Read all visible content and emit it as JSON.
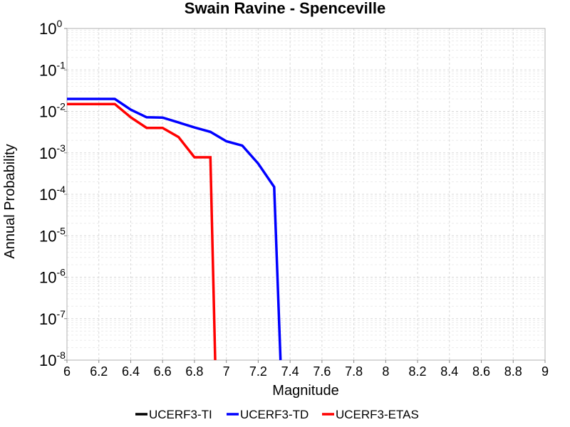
{
  "chart_data": {
    "type": "line",
    "title": "Swain Ravine - Spenceville",
    "xlabel": "Magnitude",
    "ylabel": "Annual Probability",
    "xlim": [
      6,
      9
    ],
    "ylim": [
      1e-08,
      1
    ],
    "yscale": "log",
    "grid": true,
    "legend_position": "bottom",
    "x_ticks": [
      "6",
      "6.2",
      "6.4",
      "6.6",
      "6.8",
      "7",
      "7.2",
      "7.4",
      "7.6",
      "7.8",
      "8",
      "8.2",
      "8.4",
      "8.6",
      "8.8",
      "9"
    ],
    "y_ticks": [
      {
        "base": "10",
        "exp": "0"
      },
      {
        "base": "10",
        "exp": "-1"
      },
      {
        "base": "10",
        "exp": "-2"
      },
      {
        "base": "10",
        "exp": "-3"
      },
      {
        "base": "10",
        "exp": "-4"
      },
      {
        "base": "10",
        "exp": "-5"
      },
      {
        "base": "10",
        "exp": "-6"
      },
      {
        "base": "10",
        "exp": "-7"
      },
      {
        "base": "10",
        "exp": "-8"
      }
    ],
    "series": [
      {
        "name": "UCERF3-TI",
        "color": "#000000",
        "x": [],
        "y": []
      },
      {
        "name": "UCERF3-TD",
        "color": "#0000ff",
        "x": [
          6.0,
          6.1,
          6.2,
          6.3,
          6.4,
          6.5,
          6.6,
          6.7,
          6.8,
          6.9,
          7.0,
          7.1,
          7.2,
          7.3,
          7.34
        ],
        "y": [
          0.02,
          0.02,
          0.02,
          0.02,
          0.011,
          0.0072,
          0.0071,
          0.0054,
          0.0041,
          0.0032,
          0.0019,
          0.0015,
          0.00055,
          0.00015,
          1e-08
        ]
      },
      {
        "name": "UCERF3-ETAS",
        "color": "#ff0000",
        "x": [
          6.0,
          6.1,
          6.2,
          6.3,
          6.4,
          6.5,
          6.6,
          6.7,
          6.8,
          6.9,
          6.93
        ],
        "y": [
          0.015,
          0.015,
          0.015,
          0.015,
          0.0072,
          0.004,
          0.004,
          0.0024,
          0.00078,
          0.00078,
          1e-08
        ]
      }
    ]
  }
}
